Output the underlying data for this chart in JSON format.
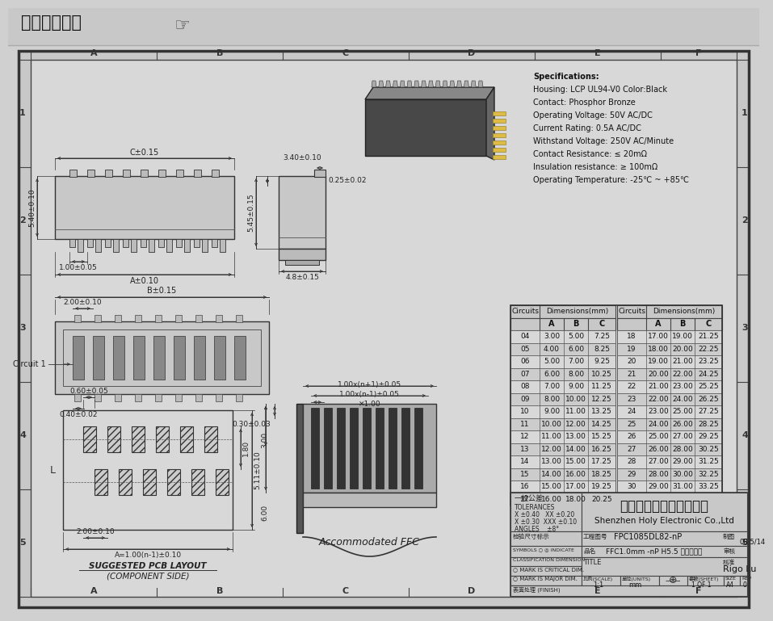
{
  "title": "在线图纸下载",
  "bg_outer": "#d0d0d0",
  "bg_header": "#c8c8c8",
  "bg_draw": "#c8c8c8",
  "bg_inner": "#d8d8d8",
  "specs": [
    "Specifications:",
    "Housing: LCP UL94-V0 Color:Black",
    "Contact: Phosphor Bronze",
    "Operating Voltage: 50V AC/DC",
    "Current Rating: 0.5A AC/DC",
    "Withstand Voltage: 250V AC/Minute",
    "Contact Resistance: ≤ 20mΩ",
    "Insulation resistance: ≥ 100mΩ",
    "Operating Temperature: -25℃ ~ +85℃"
  ],
  "table_left": [
    [
      "04",
      "3.00",
      "5.00",
      "7.25"
    ],
    [
      "05",
      "4.00",
      "6.00",
      "8.25"
    ],
    [
      "06",
      "5.00",
      "7.00",
      "9.25"
    ],
    [
      "07",
      "6.00",
      "8.00",
      "10.25"
    ],
    [
      "08",
      "7.00",
      "9.00",
      "11.25"
    ],
    [
      "09",
      "8.00",
      "10.00",
      "12.25"
    ],
    [
      "10",
      "9.00",
      "11.00",
      "13.25"
    ],
    [
      "11",
      "10.00",
      "12.00",
      "14.25"
    ],
    [
      "12",
      "11.00",
      "13.00",
      "15.25"
    ],
    [
      "13",
      "12.00",
      "14.00",
      "16.25"
    ],
    [
      "14",
      "13.00",
      "15.00",
      "17.25"
    ],
    [
      "15",
      "14.00",
      "16.00",
      "18.25"
    ],
    [
      "16",
      "15.00",
      "17.00",
      "19.25"
    ],
    [
      "17",
      "16.00",
      "18.00",
      "20.25"
    ]
  ],
  "table_right": [
    [
      "18",
      "17.00",
      "19.00",
      "21.25"
    ],
    [
      "19",
      "18.00",
      "20.00",
      "22.25"
    ],
    [
      "20",
      "19.00",
      "21.00",
      "23.25"
    ],
    [
      "21",
      "20.00",
      "22.00",
      "24.25"
    ],
    [
      "22",
      "21.00",
      "23.00",
      "25.25"
    ],
    [
      "23",
      "22.00",
      "24.00",
      "26.25"
    ],
    [
      "24",
      "23.00",
      "25.00",
      "27.25"
    ],
    [
      "25",
      "24.00",
      "26.00",
      "28.25"
    ],
    [
      "26",
      "25.00",
      "27.00",
      "29.25"
    ],
    [
      "27",
      "26.00",
      "28.00",
      "30.25"
    ],
    [
      "28",
      "27.00",
      "29.00",
      "31.25"
    ],
    [
      "29",
      "28.00",
      "30.00",
      "32.25"
    ],
    [
      "30",
      "29.00",
      "31.00",
      "33.25"
    ],
    [
      "",
      "",
      "",
      ""
    ]
  ],
  "grid_cols": [
    "A",
    "B",
    "C",
    "D",
    "E",
    "F"
  ],
  "grid_rows": [
    "1",
    "2",
    "3",
    "4",
    "5"
  ],
  "company_cn": "深圳市宏利电子有限公司",
  "company_en": "Shenzhen Holy Electronic Co.,Ltd",
  "drawing_no": "FPC1085DL82-nP",
  "part_name": "FFC1.0mm -nP H5.5 单面接正位",
  "date": "08/5/14",
  "approver": "Rigo Lu",
  "scale": "1:1",
  "units": "mm",
  "sheet": "1 OF 1",
  "size_val": "A4",
  "rev_val": "0",
  "tol_header": "一般公差",
  "tolerances": [
    "TOLERANCES",
    "X ±0.40   XX ±0.20",
    "X ±0.30  XXX ±0.10",
    "ANGLES    ±8°"
  ],
  "sub_pcb": "SUGGESTED PCB LAYOUT",
  "sub_pcb2": "(COMPONENT SIDE)",
  "sub_ffc": "Accommodated FFC",
  "dim_C": "C±0.15",
  "dim_340": "3.40±0.10",
  "dim_540": "5.40±0.10",
  "dim_545": "5.45±0.15",
  "dim_025": "0.25±0.02",
  "dim_100": "1.00±0.05",
  "dim_A": "A±0.10",
  "dim_48": "4.8±0.15",
  "dim_B": "B±0.15",
  "dim_200": "2.00±0.10",
  "dim_040": "0.40±0.02",
  "dim_060": "0.60±0.05",
  "dim_030": "0.30±0.03",
  "dim_511": "5.11±0.10",
  "dim_160": "1.80",
  "dim_an1": "A=1.00(n-1)±0.10",
  "dim_1n1p": "1.00x(n+1)±0.05",
  "dim_1n1m": "1.00x(n-1)±0.05",
  "dim_1": "✕1.00",
  "dim_3": "3.00",
  "dim_6": "6.00",
  "mark_critical": "○ MARK IS CRITICAL DIM.",
  "mark_major": "○ MARK IS MAJOR DIM.",
  "surface": "表面处理 (FINISH)",
  "insp_label": "检验尺寸标示",
  "sym_label": "SYMBOLS ○ ◎ INDICATE",
  "class_label": "CLASSIFICATION DIMENSION",
  "title_label": "TITLE",
  "eng_label": "工程图号",
  "made_label": "制图",
  "check_label": "审核",
  "appr_label": "核准",
  "product_label": "品名",
  "scale_label": "比例(SCALE)",
  "unit_label": "单位(UNITS)",
  "sheet_label": "套数(SHEET)",
  "size_label": "SIZE",
  "rev_label": "REV"
}
